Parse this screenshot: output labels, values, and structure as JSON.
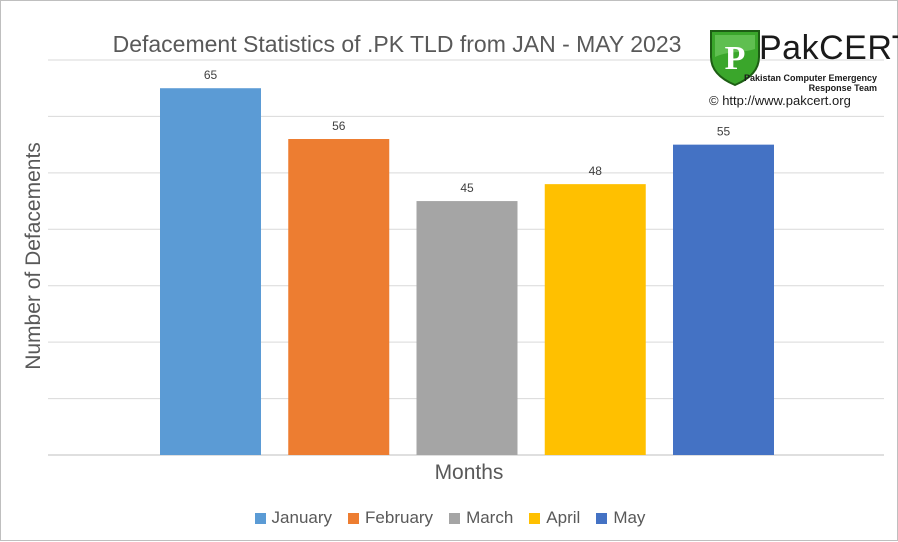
{
  "chart_data": {
    "type": "bar",
    "title": "Defacement Statistics of .PK TLD from JAN - MAY 2023",
    "xlabel": "Months",
    "ylabel": "Number of Defacements",
    "categories": [
      "January",
      "February",
      "March",
      "April",
      "May"
    ],
    "values": [
      65,
      56,
      45,
      48,
      55
    ],
    "colors": [
      "#5b9bd5",
      "#ed7d31",
      "#a5a5a5",
      "#ffc000",
      "#4472c4"
    ],
    "ylim": [
      0,
      70
    ],
    "ygrid_step": 10,
    "grid": true,
    "legend_position": "bottom",
    "show_y_tick_labels": false,
    "data_labels": [
      "65",
      "56",
      "45",
      "48",
      "55"
    ]
  },
  "logo": {
    "brand": "PakCERT",
    "subtitle_line1": "Pakistan Computer Emergency",
    "subtitle_line2": "Response Team",
    "url": "© http://www.pakcert.org",
    "shield_color": "#3aa62b",
    "shield_initial": "P"
  }
}
